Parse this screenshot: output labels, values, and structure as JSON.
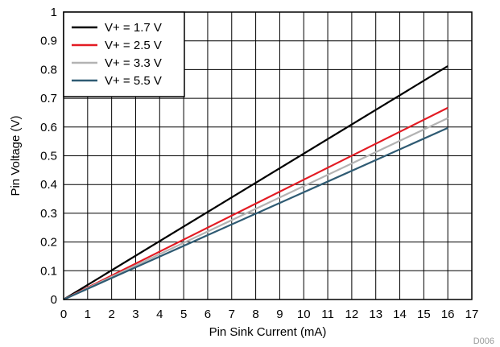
{
  "chart_data": {
    "type": "line",
    "title": "",
    "xlabel": "Pin Sink Current (mA)",
    "ylabel": "Pin Voltage (V)",
    "xlim": [
      0,
      17
    ],
    "ylim": [
      0,
      1
    ],
    "xticks": [
      "0",
      "1",
      "2",
      "3",
      "4",
      "5",
      "6",
      "7",
      "8",
      "9",
      "10",
      "11",
      "12",
      "13",
      "14",
      "15",
      "16",
      "17"
    ],
    "yticks": [
      "0",
      "0.1",
      "0.2",
      "0.3",
      "0.4",
      "0.5",
      "0.6",
      "0.7",
      "0.8",
      "0.9",
      "1"
    ],
    "grid": true,
    "legend_position": "top-left",
    "series": [
      {
        "name": "V+ = 1.7 V",
        "color": "#000000",
        "x": [
          0,
          16
        ],
        "y": [
          0,
          0.812
        ]
      },
      {
        "name": "V+ = 2.5 V",
        "color": "#e31b23",
        "x": [
          0,
          16
        ],
        "y": [
          0,
          0.667
        ]
      },
      {
        "name": "V+ = 3.3 V",
        "color": "#b3b3b3",
        "x": [
          0,
          16
        ],
        "y": [
          0,
          0.631
        ]
      },
      {
        "name": "V+ = 5.5 V",
        "color": "#2f5b73",
        "x": [
          0,
          16
        ],
        "y": [
          0,
          0.597
        ]
      }
    ],
    "footnote": "D006"
  }
}
